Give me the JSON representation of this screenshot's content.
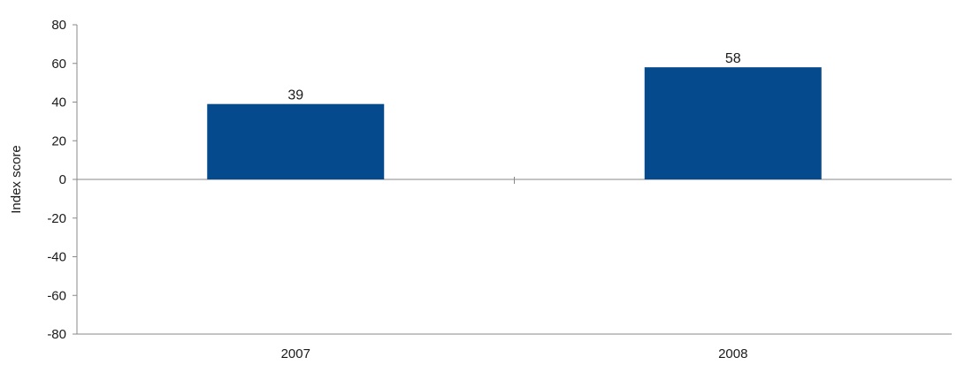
{
  "chart_data": {
    "type": "bar",
    "title": "",
    "xlabel": "",
    "ylabel": "Index score",
    "categories": [
      "2007",
      "2008"
    ],
    "values": [
      39,
      58
    ],
    "data_labels": [
      "39",
      "58"
    ],
    "ylim": [
      -80,
      80
    ],
    "yticks": [
      80,
      60,
      40,
      20,
      0,
      -20,
      -40,
      -60,
      -80
    ],
    "grid": false,
    "legend": "none",
    "bar_color": "#054a8c",
    "axis_color": "#888888"
  }
}
